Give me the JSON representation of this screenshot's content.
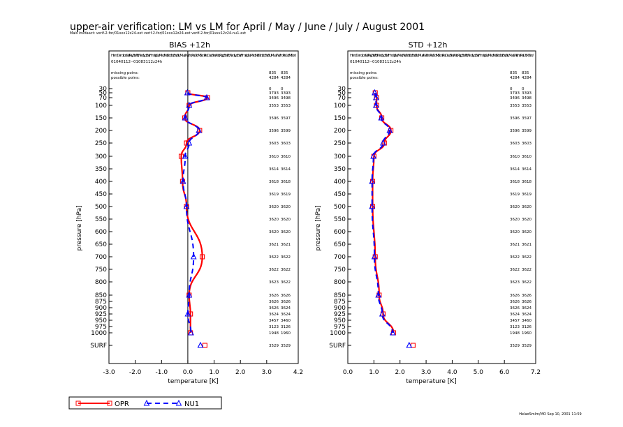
{
  "title": "upper-air verification: LM vs LM for April / May / June / July / August 2001",
  "subtitle": "Mais invdaact: verif-2-for/01xxx12z24-ext verif-2-for/01xxx12z24-ext verif-2-for/01xxx12z24-nu1-ext",
  "footer": "HelaoSmlm/MO Sep 10, 2001 11:59",
  "y_tick_labels": [
    "30",
    "50",
    "70",
    "100",
    "150",
    "200",
    "250",
    "300",
    "350",
    "400",
    "450",
    "500",
    "550",
    "600",
    "650",
    "700",
    "750",
    "800",
    "850",
    "875",
    "900",
    "925",
    "950",
    "975",
    "1000",
    "SURF"
  ],
  "stations_line": "Ham/Dem/Lon/Val/Pay/Bre/Tro/Nan/Lyo/Bar/Him/ajo/Le /Mad/Nel/Sch/Lin/Ess/Stu/Mue/Wie/Inn/Pra/Udi/Mil/Son/Pre/Oua/Bes/Kab/Rigg/Bra/Tro/Nan/Lyo/Bar/Him/ajo/Le /Mad/Nel/Sch/Lin/Ess/Stu/Mue/Wie/Inn/Pra/Udi/Mil/Son/",
  "period": "01040112--01083112z24h",
  "missing_label": "missing poins:",
  "possible_label": "possible poins:",
  "missing_counts": [
    "835",
    "835"
  ],
  "possible_counts": [
    "4284",
    "4284"
  ],
  "row_counts": [
    [
      "0",
      "0"
    ],
    [
      "3793",
      "3393"
    ],
    [
      "3496",
      "3498"
    ],
    [
      "3553",
      "3553"
    ],
    [
      "3596",
      "3597"
    ],
    [
      "3596",
      "3599"
    ],
    [
      "3603",
      "3603"
    ],
    [
      "3610",
      "3610"
    ],
    [
      "3614",
      "3614"
    ],
    [
      "3618",
      "3618"
    ],
    [
      "3619",
      "3619"
    ],
    [
      "3620",
      "3620"
    ],
    [
      "3620",
      "3620"
    ],
    [
      "3620",
      "3620"
    ],
    [
      "3621",
      "3621"
    ],
    [
      "3622",
      "3622"
    ],
    [
      "3622",
      "3622"
    ],
    [
      "3623",
      "3622"
    ],
    [
      "3626",
      "3626"
    ],
    [
      "3626",
      "3626"
    ],
    [
      "3626",
      "3624"
    ],
    [
      "3624",
      "3624"
    ],
    [
      "3457",
      "3460"
    ],
    [
      "3123",
      "3126"
    ],
    [
      "1948",
      "1960"
    ],
    [
      "3529",
      "3529"
    ]
  ],
  "legend": [
    {
      "label": "OPR",
      "color": "#ff0000"
    },
    {
      "label": "NU1",
      "color": "#0000ff"
    }
  ],
  "chart_data": [
    {
      "type": "line",
      "title": "BIAS      +12h",
      "xlabel": "temperature  [K]",
      "ylabel": "pressure [hPa]",
      "xlim": [
        -3.0,
        4.2
      ],
      "xticks": [
        "-3.0",
        "-2.0",
        "-1.0",
        "0.0",
        "1.0",
        "2.0",
        "3.0",
        "4.2"
      ],
      "xtick_values": [
        -3.0,
        -2.0,
        -1.0,
        0.0,
        1.0,
        2.0,
        3.0,
        4.2
      ],
      "pressure_levels": [
        50,
        70,
        100,
        150,
        200,
        250,
        300,
        400,
        500,
        700,
        850,
        925,
        1000,
        "SURF"
      ],
      "series": [
        {
          "name": "OPR",
          "color": "#ff0000",
          "values": [
            0.0,
            0.75,
            0.05,
            -0.12,
            0.45,
            -0.05,
            -0.25,
            -0.2,
            -0.05,
            0.55,
            0.05,
            0.1,
            0.1,
            0.65
          ]
        },
        {
          "name": "NU1",
          "color": "#0000ff",
          "values": [
            -0.02,
            0.72,
            0.05,
            -0.1,
            0.42,
            0.05,
            -0.1,
            -0.18,
            -0.05,
            0.22,
            0.05,
            0.0,
            0.12,
            0.48
          ]
        }
      ]
    },
    {
      "type": "line",
      "title": "STD      +12h",
      "xlabel": "temperature  [K]",
      "ylabel": "pressure [hPa]",
      "xlim": [
        0.0,
        7.2
      ],
      "xticks": [
        "0.0",
        "1.0",
        "2.0",
        "3.0",
        "4.0",
        "5.0",
        "6.0",
        "7.2"
      ],
      "xtick_values": [
        0.0,
        1.0,
        2.0,
        3.0,
        4.0,
        5.0,
        6.0,
        7.2
      ],
      "pressure_levels": [
        50,
        70,
        100,
        150,
        200,
        250,
        300,
        400,
        500,
        700,
        850,
        925,
        1000,
        "SURF"
      ],
      "series": [
        {
          "name": "OPR",
          "color": "#ff0000",
          "values": [
            1.05,
            1.1,
            1.1,
            1.3,
            1.65,
            1.4,
            1.0,
            0.95,
            0.95,
            1.05,
            1.2,
            1.35,
            1.75,
            2.5
          ]
        },
        {
          "name": "NU1",
          "color": "#0000ff",
          "values": [
            1.03,
            1.08,
            1.08,
            1.28,
            1.6,
            1.35,
            0.98,
            0.93,
            0.93,
            1.02,
            1.17,
            1.32,
            1.72,
            2.35
          ]
        }
      ]
    }
  ]
}
